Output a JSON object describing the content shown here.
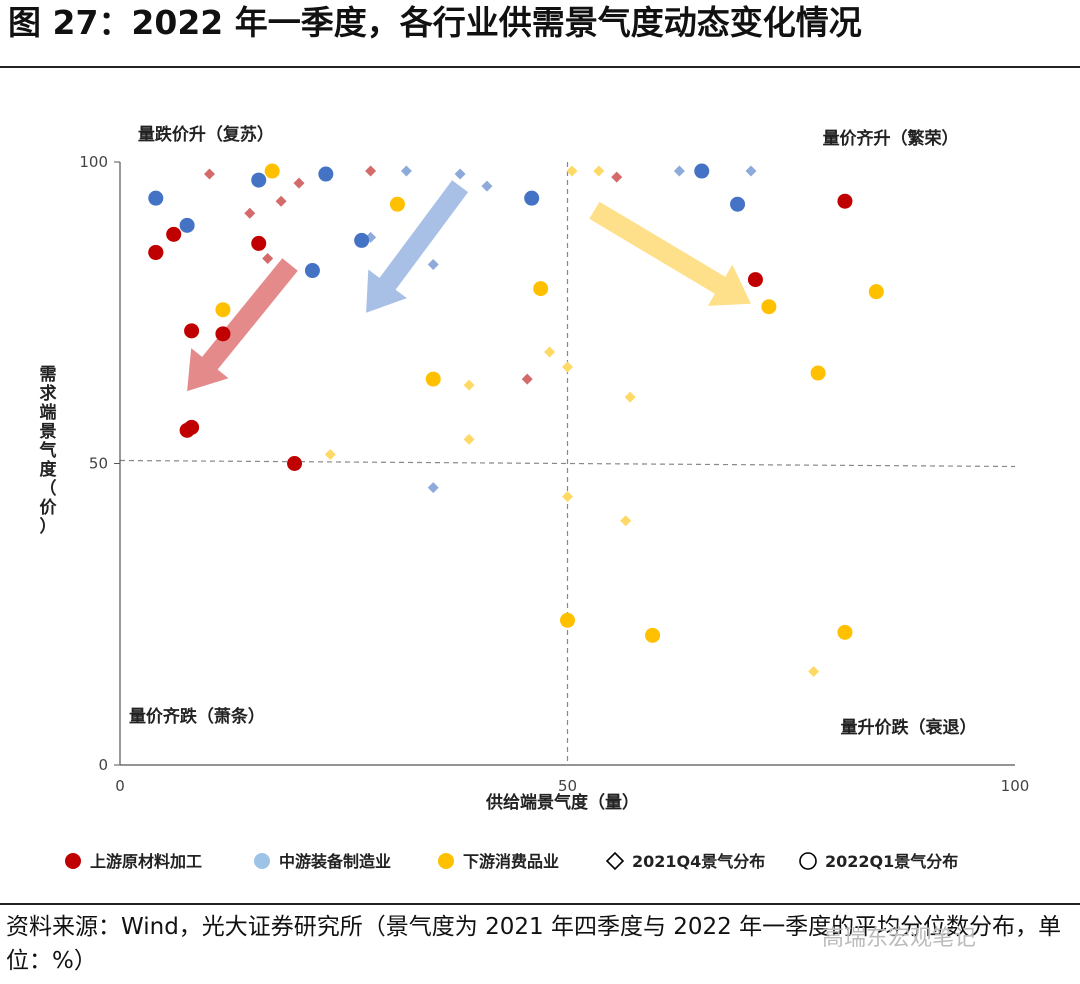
{
  "figure": {
    "title": "图 27：2022 年一季度，各行业供需景气度动态变化情况",
    "source": "资料来源：Wind，光大证券研究所（景气度为 2021 年四季度与 2022 年一季度的平均分位数分布，单位：%）",
    "watermark": "高瑞东宏观笔记"
  },
  "chart_data": {
    "type": "scatter",
    "xlabel": "供给端景气度（量）",
    "ylabel": "需求端景气度（价）",
    "xlim": [
      0,
      100
    ],
    "ylim": [
      0,
      100
    ],
    "xticks": [
      0,
      50,
      100
    ],
    "yticks": [
      0,
      50,
      100
    ],
    "grid": false,
    "legend_position": "bottom",
    "quadrants": {
      "top_left": "量跌价升（复苏）",
      "top_right": "量价齐升（繁荣）",
      "bottom_left": "量价齐跌（萧条）",
      "bottom_right": "量升价跌（衰退）"
    },
    "legend": [
      {
        "label": "上游原材料加工",
        "marker": "circle",
        "color": "#c00000"
      },
      {
        "label": "中游装备制造业",
        "marker": "circle",
        "color": "#9dc3e6"
      },
      {
        "label": "下游消费品业",
        "marker": "circle",
        "color": "#ffc000"
      },
      {
        "label": "2021Q4景气分布",
        "marker": "diamond-outline",
        "color": "#000000"
      },
      {
        "label": "2022Q1景气分布",
        "marker": "circle-outline",
        "color": "#000000"
      }
    ],
    "series": [
      {
        "name": "上游原材料加工",
        "period": "2022Q1",
        "marker": "circle",
        "color": "#c00000",
        "x": [
          4,
          6,
          8,
          8,
          11.5,
          15.5,
          4,
          7.5,
          19.5,
          71,
          81
        ],
        "y": [
          85,
          88,
          72,
          56,
          71.5,
          86.5,
          85,
          55.5,
          50,
          80.5,
          93.5
        ]
      },
      {
        "name": "中游装备制造业",
        "period": "2022Q1",
        "marker": "circle",
        "color": "#4472c4",
        "x": [
          4,
          7.5,
          15.5,
          23,
          27,
          21.5,
          46,
          65,
          69
        ],
        "y": [
          94,
          89.5,
          97,
          98,
          87,
          82,
          94,
          98.5,
          93
        ]
      },
      {
        "name": "下游消费品业",
        "period": "2022Q1",
        "marker": "circle",
        "color": "#ffc000",
        "x": [
          17,
          11.5,
          31,
          35,
          47,
          50,
          59.5,
          72.5,
          78,
          84.5,
          81
        ],
        "y": [
          98.5,
          75.5,
          93,
          64,
          79,
          24,
          21.5,
          76,
          65,
          78.5,
          22
        ]
      },
      {
        "name": "上游原材料加工",
        "period": "2021Q4",
        "marker": "diamond",
        "color": "#d46a6a",
        "x": [
          10,
          14.5,
          18,
          20,
          28,
          16.5,
          45.5,
          55.5
        ],
        "y": [
          98,
          91.5,
          93.5,
          96.5,
          98.5,
          84,
          64,
          97.5
        ]
      },
      {
        "name": "中游装备制造业",
        "period": "2021Q4",
        "marker": "diamond",
        "color": "#8eaadb",
        "x": [
          32,
          38,
          41,
          28,
          35,
          35,
          62.5,
          70.5
        ],
        "y": [
          98.5,
          98,
          96,
          87.5,
          83,
          46,
          98.5,
          98.5
        ]
      },
      {
        "name": "下游消费品业",
        "period": "2021Q4",
        "marker": "diamond",
        "color": "#ffd966",
        "x": [
          50.5,
          53.5,
          48,
          50,
          39,
          39,
          57,
          23.5,
          50,
          56.5,
          77.5
        ],
        "y": [
          98.5,
          98.5,
          68.5,
          66,
          63,
          54,
          61,
          51.5,
          44.5,
          40.5,
          15.5
        ]
      }
    ],
    "arrows": [
      {
        "color": "#e58a8a",
        "from": [
          19,
          83
        ],
        "to": [
          7.5,
          62
        ]
      },
      {
        "color": "#a9c0e6",
        "from": [
          38,
          96
        ],
        "to": [
          27.5,
          75
        ]
      },
      {
        "color": "#ffe08a",
        "from": [
          53,
          92
        ],
        "to": [
          70.5,
          76.5
        ]
      }
    ],
    "reference_lines": [
      {
        "axis": "x",
        "value": 50,
        "style": "dashed"
      },
      {
        "axis": "y",
        "value": 50,
        "style": "dashed"
      }
    ]
  }
}
